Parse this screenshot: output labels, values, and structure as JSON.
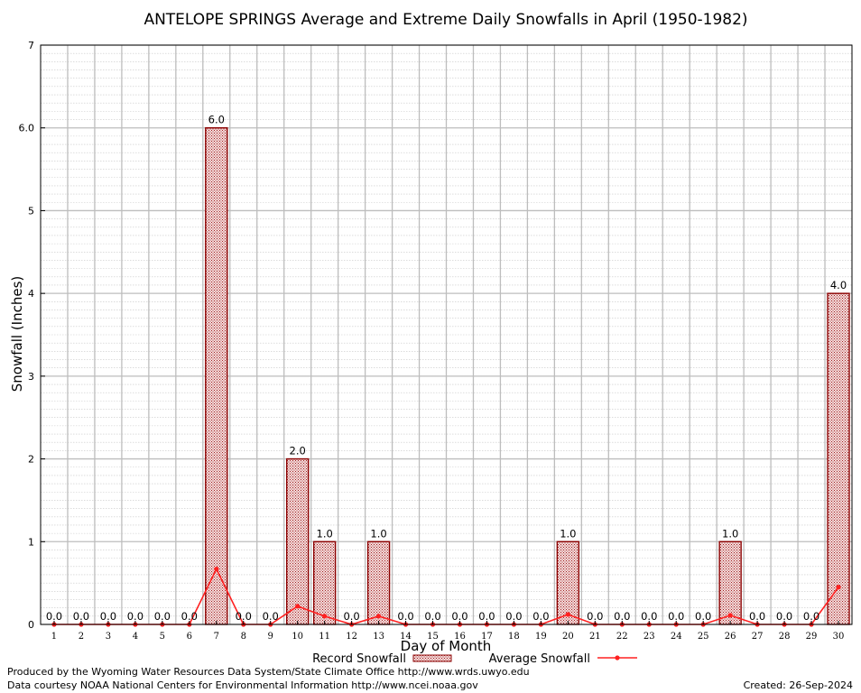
{
  "chart_data": {
    "type": "bar",
    "title": "ANTELOPE SPRINGS Average and Extreme Daily Snowfalls in April (1950-1982)",
    "xlabel": "Day of Month",
    "ylabel": "Snowfall (Inches)",
    "ylim": [
      0,
      7
    ],
    "yticks": [
      0,
      1,
      2,
      3,
      4,
      5,
      6,
      7
    ],
    "ytick_labels": [
      "0",
      "1",
      "2",
      "3",
      "4",
      "5",
      "6.0",
      "7"
    ],
    "grid": true,
    "legend_position": "bottom-center",
    "categories": [
      "1",
      "2",
      "3",
      "4",
      "5",
      "6",
      "7",
      "8",
      "9",
      "10",
      "11",
      "12",
      "13",
      "14",
      "15",
      "16",
      "17",
      "18",
      "19",
      "20",
      "21",
      "22",
      "23",
      "24",
      "25",
      "26",
      "27",
      "28",
      "29",
      "30"
    ],
    "series": [
      {
        "name": "Record Snowfall",
        "kind": "bar",
        "color": "#b22222",
        "values": [
          0,
          0,
          0,
          0,
          0,
          0,
          6.0,
          0,
          0,
          2.0,
          1.0,
          0,
          1.0,
          0,
          0,
          0,
          0,
          0,
          0,
          1.0,
          0,
          0,
          0,
          0,
          0,
          1.0,
          0,
          0,
          0,
          4.0
        ],
        "labels": [
          "0.0",
          "0.0",
          "0.0",
          "0.0",
          "0.0",
          "0.0",
          "6.0",
          "0.0",
          "0.0",
          "2.0",
          "1.0",
          "0.0",
          "1.0",
          "0.0",
          "0.0",
          "0.0",
          "0.0",
          "0.0",
          "0.0",
          "1.0",
          "0.0",
          "0.0",
          "0.0",
          "0.0",
          "0.0",
          "1.0",
          "0.0",
          "0.0",
          "0.0",
          "4.0"
        ]
      },
      {
        "name": "Average Snowfall",
        "kind": "line",
        "color": "#ff2020",
        "values": [
          0,
          0,
          0,
          0,
          0,
          0,
          0.67,
          0,
          0,
          0.22,
          0.1,
          0,
          0.1,
          0,
          0,
          0,
          0,
          0,
          0,
          0.12,
          0,
          0,
          0,
          0,
          0,
          0.11,
          0,
          0,
          0,
          0.45
        ]
      }
    ]
  },
  "footer": {
    "produced_by": "Produced by the Wyoming Water Resources Data System/State Climate Office http://www.wrds.uwyo.edu",
    "courtesy": "Data courtesy NOAA National Centers for Environmental Information http://www.ncei.noaa.gov",
    "created": "Created:  26-Sep-2024"
  }
}
